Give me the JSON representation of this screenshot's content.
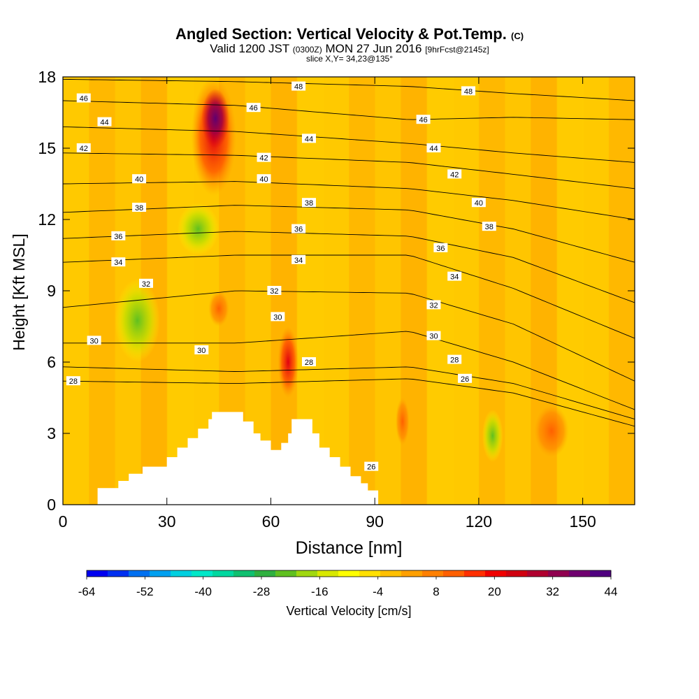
{
  "header": {
    "title": "Angled Section: Vertical Velocity & Pot.Temp.",
    "title_mark": "(C)",
    "valid_prefix": "Valid 1200 JST",
    "valid_zulu": "(0300Z)",
    "valid_date": "MON 27 Jun 2016",
    "forecast": "[9hrFcst@2145z]",
    "slice": "slice X,Y= 34,23@135°"
  },
  "chart_data": {
    "type": "heatmap",
    "title": "Angled Section: Vertical Velocity & Pot.Temp.",
    "xlabel": "Distance [nm]",
    "ylabel": "Height [Kft MSL]",
    "xlim": [
      0,
      165
    ],
    "ylim": [
      0,
      18
    ],
    "xticks": [
      0,
      30,
      60,
      90,
      120,
      150
    ],
    "yticks": [
      0,
      3,
      6,
      9,
      12,
      15,
      18
    ],
    "fill_variable": "Vertical Velocity [cm/s]",
    "colorbar": {
      "label": "Vertical Velocity [cm/s]",
      "tick_labels": [
        -64,
        -52,
        -40,
        -28,
        -16,
        -4,
        8,
        20,
        32,
        44
      ],
      "colors": [
        "#0000f0",
        "#0030f0",
        "#0070f0",
        "#00a0f0",
        "#00d0e0",
        "#00e8c8",
        "#00d8a0",
        "#10c070",
        "#30b040",
        "#60c020",
        "#a0d810",
        "#d8e800",
        "#ffff00",
        "#ffe000",
        "#ffc000",
        "#ffa000",
        "#ff8000",
        "#ff6000",
        "#ff3000",
        "#f00000",
        "#d00010",
        "#b00030",
        "#900050",
        "#700070",
        "#500080"
      ]
    },
    "terrain_kft": [
      [
        0,
        0
      ],
      [
        10,
        0
      ],
      [
        10,
        0.7
      ],
      [
        16,
        0.7
      ],
      [
        16,
        1.0
      ],
      [
        19,
        1.0
      ],
      [
        19,
        1.3
      ],
      [
        23,
        1.3
      ],
      [
        23,
        1.6
      ],
      [
        30,
        1.6
      ],
      [
        30,
        2.0
      ],
      [
        33,
        2.0
      ],
      [
        33,
        2.4
      ],
      [
        36,
        2.4
      ],
      [
        36,
        2.8
      ],
      [
        39,
        2.8
      ],
      [
        39,
        3.2
      ],
      [
        42,
        3.2
      ],
      [
        42,
        3.6
      ],
      [
        43,
        3.6
      ],
      [
        43,
        3.9
      ],
      [
        52,
        3.9
      ],
      [
        52,
        3.5
      ],
      [
        55,
        3.5
      ],
      [
        55,
        3.0
      ],
      [
        57,
        3.0
      ],
      [
        57,
        2.7
      ],
      [
        60,
        2.7
      ],
      [
        60,
        2.3
      ],
      [
        63,
        2.3
      ],
      [
        63,
        2.6
      ],
      [
        65,
        2.6
      ],
      [
        65,
        3.0
      ],
      [
        66,
        3.0
      ],
      [
        66,
        3.6
      ],
      [
        72,
        3.6
      ],
      [
        72,
        3.0
      ],
      [
        74,
        3.0
      ],
      [
        74,
        2.4
      ],
      [
        77,
        2.4
      ],
      [
        77,
        2.0
      ],
      [
        80,
        2.0
      ],
      [
        80,
        1.6
      ],
      [
        83,
        1.6
      ],
      [
        83,
        1.2
      ],
      [
        86,
        1.2
      ],
      [
        86,
        0.9
      ],
      [
        88,
        0.9
      ],
      [
        88,
        0.6
      ],
      [
        91,
        0.6
      ],
      [
        91,
        0
      ],
      [
        165,
        0
      ]
    ],
    "velocity_cells": [
      {
        "x": [
          37,
          50
        ],
        "y": [
          13,
          18
        ],
        "level": "strong-updraft"
      },
      {
        "x": [
          40,
          48
        ],
        "y": [
          15,
          17.5
        ],
        "level": "extreme-updraft"
      },
      {
        "x": [
          42,
          48
        ],
        "y": [
          7.5,
          9
        ],
        "level": "moderate-updraft"
      },
      {
        "x": [
          62,
          68
        ],
        "y": [
          4.5,
          7.5
        ],
        "level": "strong-updraft"
      },
      {
        "x": [
          96,
          100
        ],
        "y": [
          2.5,
          4.5
        ],
        "level": "moderate-updraft"
      },
      {
        "x": [
          121,
          127
        ],
        "y": [
          1.8,
          4
        ],
        "level": "moderate-downdraft"
      },
      {
        "x": [
          136,
          146
        ],
        "y": [
          2,
          4.2
        ],
        "level": "moderate-updraft"
      },
      {
        "x": [
          33,
          45
        ],
        "y": [
          10.5,
          12.7
        ],
        "level": "moderate-downdraft"
      },
      {
        "x": [
          15,
          28
        ],
        "y": [
          6,
          9.5
        ],
        "level": "moderate-downdraft"
      }
    ],
    "isentropes": [
      {
        "theta": 26,
        "profile": [
          [
            0,
            5.2
          ],
          [
            50,
            5.1
          ],
          [
            100,
            5.3
          ],
          [
            130,
            4.7
          ],
          [
            165,
            3.3
          ]
        ]
      },
      {
        "theta": 28,
        "profile": [
          [
            0,
            5.8
          ],
          [
            50,
            5.6
          ],
          [
            100,
            5.8
          ],
          [
            130,
            5.1
          ],
          [
            165,
            3.6
          ]
        ]
      },
      {
        "theta": 30,
        "profile": [
          [
            0,
            6.8
          ],
          [
            50,
            6.8
          ],
          [
            100,
            7.3
          ],
          [
            130,
            6.0
          ],
          [
            165,
            4.0
          ]
        ]
      },
      {
        "theta": 32,
        "profile": [
          [
            0,
            8.3
          ],
          [
            50,
            9.0
          ],
          [
            100,
            8.9
          ],
          [
            130,
            7.6
          ],
          [
            165,
            5.2
          ]
        ]
      },
      {
        "theta": 34,
        "profile": [
          [
            0,
            10.2
          ],
          [
            50,
            10.5
          ],
          [
            100,
            10.5
          ],
          [
            130,
            9.1
          ],
          [
            165,
            7.0
          ]
        ]
      },
      {
        "theta": 36,
        "profile": [
          [
            0,
            11.2
          ],
          [
            50,
            11.5
          ],
          [
            100,
            11.3
          ],
          [
            130,
            10.4
          ],
          [
            165,
            8.5
          ]
        ]
      },
      {
        "theta": 38,
        "profile": [
          [
            0,
            12.3
          ],
          [
            50,
            12.6
          ],
          [
            100,
            12.4
          ],
          [
            130,
            11.6
          ],
          [
            165,
            10.2
          ]
        ]
      },
      {
        "theta": 40,
        "profile": [
          [
            0,
            13.5
          ],
          [
            50,
            13.6
          ],
          [
            100,
            13.3
          ],
          [
            130,
            12.8
          ],
          [
            165,
            12.0
          ]
        ]
      },
      {
        "theta": 42,
        "profile": [
          [
            0,
            14.8
          ],
          [
            50,
            14.7
          ],
          [
            100,
            14.4
          ],
          [
            130,
            13.9
          ],
          [
            165,
            13.3
          ]
        ]
      },
      {
        "theta": 44,
        "profile": [
          [
            0,
            15.9
          ],
          [
            50,
            15.7
          ],
          [
            100,
            15.2
          ],
          [
            130,
            14.8
          ],
          [
            165,
            14.4
          ]
        ]
      },
      {
        "theta": 46,
        "profile": [
          [
            0,
            17.0
          ],
          [
            50,
            16.8
          ],
          [
            100,
            16.2
          ],
          [
            130,
            16.3
          ],
          [
            165,
            16.2
          ]
        ]
      },
      {
        "theta": 48,
        "profile": [
          [
            0,
            17.9
          ],
          [
            50,
            17.8
          ],
          [
            100,
            17.6
          ],
          [
            130,
            17.3
          ],
          [
            165,
            17.0
          ]
        ]
      }
    ],
    "contour_labels": [
      {
        "text": "46",
        "x": 6,
        "y": 17.1
      },
      {
        "text": "44",
        "x": 12,
        "y": 16.1
      },
      {
        "text": "42",
        "x": 6,
        "y": 15.0
      },
      {
        "text": "40",
        "x": 22,
        "y": 13.7
      },
      {
        "text": "38",
        "x": 22,
        "y": 12.5
      },
      {
        "text": "36",
        "x": 16,
        "y": 11.3
      },
      {
        "text": "34",
        "x": 16,
        "y": 10.2
      },
      {
        "text": "32",
        "x": 24,
        "y": 9.3
      },
      {
        "text": "30",
        "x": 9,
        "y": 6.9
      },
      {
        "text": "28",
        "x": 3,
        "y": 5.2
      },
      {
        "text": "48",
        "x": 68,
        "y": 17.6
      },
      {
        "text": "46",
        "x": 55,
        "y": 16.7
      },
      {
        "text": "44",
        "x": 71,
        "y": 15.4
      },
      {
        "text": "42",
        "x": 58,
        "y": 14.6
      },
      {
        "text": "40",
        "x": 58,
        "y": 13.7
      },
      {
        "text": "38",
        "x": 71,
        "y": 12.7
      },
      {
        "text": "36",
        "x": 68,
        "y": 11.6
      },
      {
        "text": "34",
        "x": 68,
        "y": 10.3
      },
      {
        "text": "32",
        "x": 61,
        "y": 9.0
      },
      {
        "text": "30",
        "x": 62,
        "y": 7.9
      },
      {
        "text": "30",
        "x": 40,
        "y": 6.5
      },
      {
        "text": "28",
        "x": 71,
        "y": 6.0
      },
      {
        "text": "48",
        "x": 117,
        "y": 17.4
      },
      {
        "text": "46",
        "x": 104,
        "y": 16.2
      },
      {
        "text": "44",
        "x": 107,
        "y": 15.0
      },
      {
        "text": "42",
        "x": 113,
        "y": 13.9
      },
      {
        "text": "40",
        "x": 120,
        "y": 12.7
      },
      {
        "text": "38",
        "x": 123,
        "y": 11.7
      },
      {
        "text": "36",
        "x": 109,
        "y": 10.8
      },
      {
        "text": "34",
        "x": 113,
        "y": 9.6
      },
      {
        "text": "32",
        "x": 107,
        "y": 8.4
      },
      {
        "text": "30",
        "x": 107,
        "y": 7.1
      },
      {
        "text": "28",
        "x": 113,
        "y": 6.1
      },
      {
        "text": "26",
        "x": 116,
        "y": 5.3
      },
      {
        "text": "26",
        "x": 89,
        "y": 1.6
      }
    ]
  }
}
